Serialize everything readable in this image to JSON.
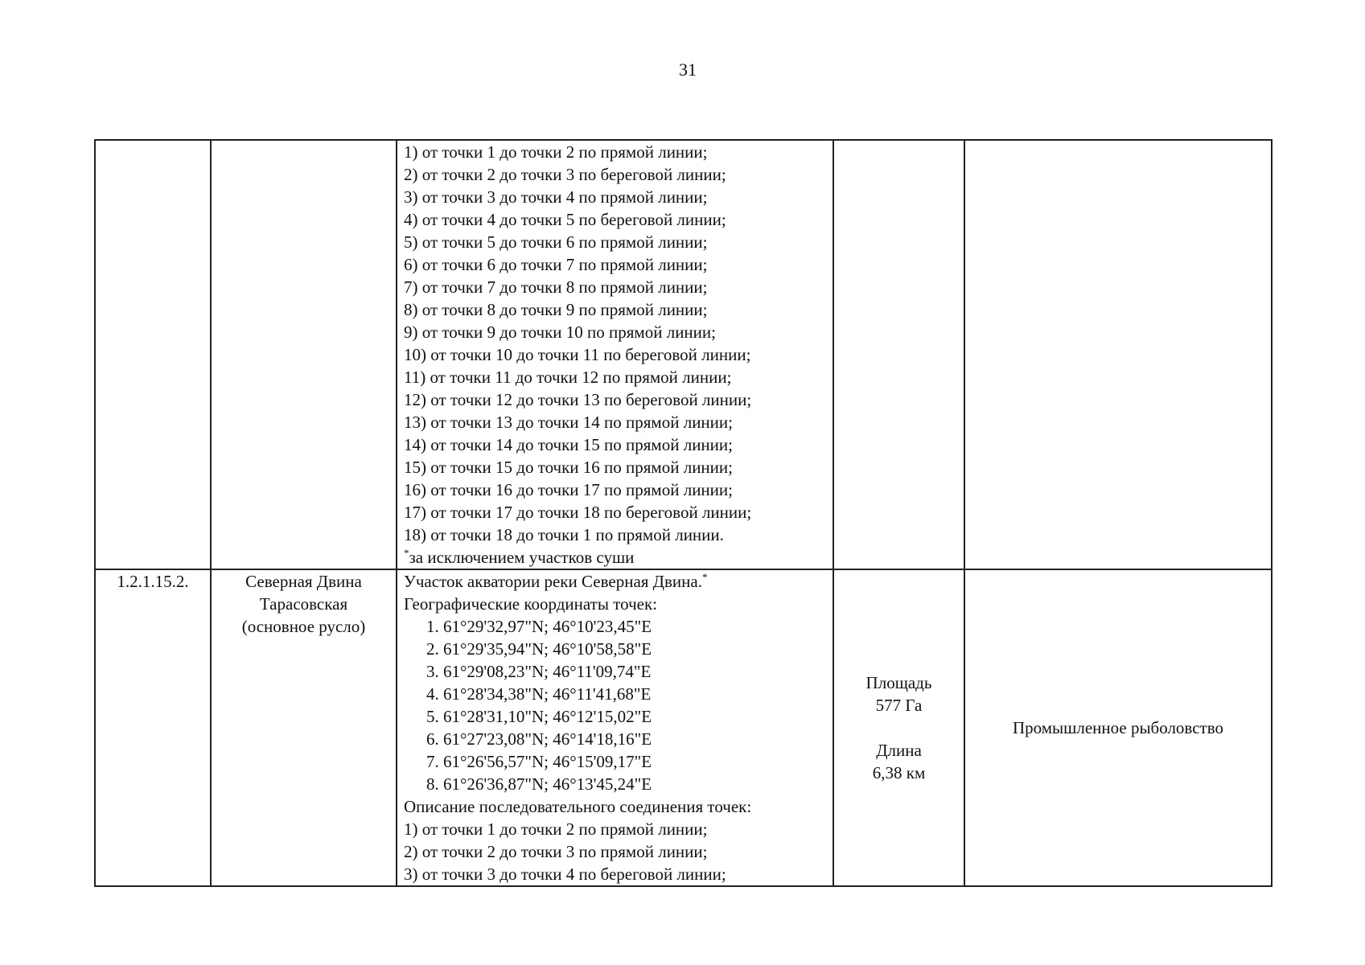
{
  "page_number": "31",
  "rows": [
    {
      "code": "",
      "name": [],
      "description_lines": [
        "1) от точки 1 до точки 2 по прямой линии;",
        "2) от точки 2 до точки 3 по береговой линии;",
        "3) от точки 3 до точки 4 по прямой линии;",
        "4) от точки 4 до точки 5 по береговой линии;",
        "5) от точки 5 до точки 6 по прямой линии;",
        "6) от точки 6 до точки 7 по прямой линии;",
        "7) от точки 7 до точки 8 по прямой линии;",
        "8) от точки 8 до точки 9 по прямой линии;",
        "9) от точки 9 до точки 10 по прямой линии;",
        "10) от точки 10 до точки 11 по береговой линии;",
        "11) от точки 11 до точки 12 по прямой линии;",
        "12) от точки 12 до точки 13 по береговой линии;",
        "13) от точки 13 до точки 14 по прямой линии;",
        "14) от точки 14 до точки 15 по прямой линии;",
        "15) от точки 15 до точки 16 по прямой линии;",
        "16) от точки 16 до точки 17 по прямой линии;",
        "17) от точки 17 до точки 18 по береговой линии;",
        "18) от точки 18 до точки 1 по прямой линии."
      ],
      "footnote_mark": "*",
      "footnote": "за исключением участков суши"
    },
    {
      "code": "1.2.1.15.2.",
      "name": [
        "Северная Двина",
        "Тарасовская",
        "(основное русло)"
      ],
      "title": "Участок акватории реки Северная Двина.",
      "title_mark": "*",
      "coords_heading": "Географические координаты точек:",
      "coords": [
        "1.  61°29'32,97\"N; 46°10'23,45\"E",
        "2.  61°29'35,94\"N; 46°10'58,58\"E",
        "3.  61°29'08,23\"N; 46°11'09,74\"E",
        "4.  61°28'34,38\"N; 46°11'41,68\"E",
        "5.  61°28'31,10\"N; 46°12'15,02\"E",
        "6.  61°27'23,08\"N; 46°14'18,16\"E",
        "7.  61°26'56,57\"N; 46°15'09,17\"E",
        "8.  61°26'36,87\"N; 46°13'45,24\"E"
      ],
      "connection_heading": "Описание последовательного соединения точек:",
      "connections": [
        "1) от точки 1 до точки 2 по прямой линии;",
        "2) от точки 2 до точки 3 по прямой линии;",
        "3) от точки 3 до точки 4 по береговой линии;"
      ],
      "area_label": "Площадь",
      "area_value": "577 Га",
      "length_label": "Длина",
      "length_value": "6,38 км",
      "usage": "Промышленное рыболовство"
    }
  ]
}
